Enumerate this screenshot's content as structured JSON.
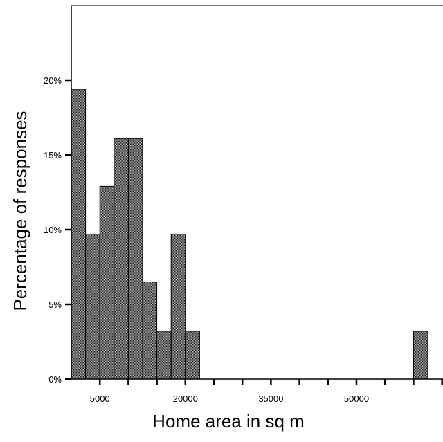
{
  "chart_data": {
    "type": "bar",
    "xlabel": "Home area in sq m",
    "ylabel": "Percentage of responses",
    "bin_width": 2500,
    "xlim": [
      0,
      65000
    ],
    "ylim": [
      0,
      25
    ],
    "x_ticks": [
      5000,
      20000,
      35000,
      50000
    ],
    "x_tick_labels": [
      "5000",
      "20000",
      "35000",
      "50000"
    ],
    "y_ticks": [
      0,
      5,
      10,
      15,
      20
    ],
    "y_tick_labels": [
      "0%",
      "5%",
      "10%",
      "15%",
      "20%"
    ],
    "bins": [
      {
        "x": 1250,
        "value": 19.4
      },
      {
        "x": 3750,
        "value": 9.7
      },
      {
        "x": 6250,
        "value": 12.9
      },
      {
        "x": 8750,
        "value": 16.1
      },
      {
        "x": 11250,
        "value": 16.1
      },
      {
        "x": 13750,
        "value": 6.5
      },
      {
        "x": 16250,
        "value": 3.2
      },
      {
        "x": 18750,
        "value": 9.7
      },
      {
        "x": 21250,
        "value": 3.2
      },
      {
        "x": 61250,
        "value": 3.2
      }
    ],
    "fill_color": "#555555",
    "grid": false,
    "legend": "none"
  }
}
